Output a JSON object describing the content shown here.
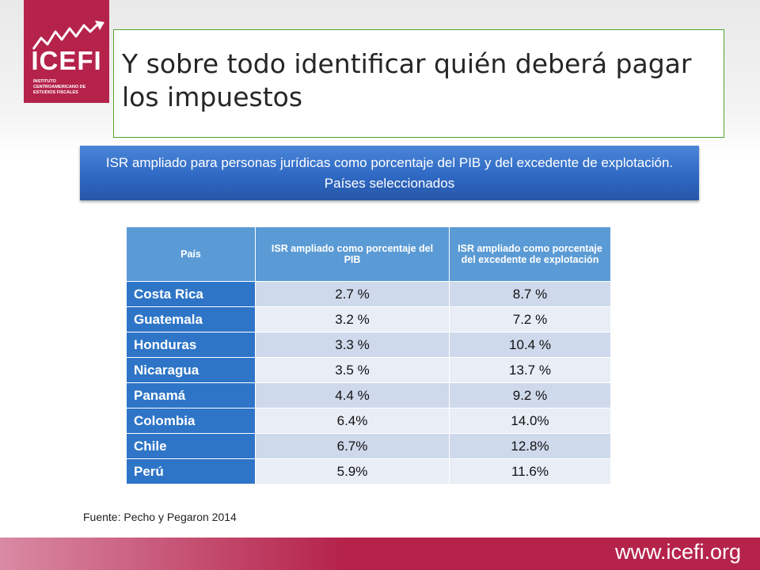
{
  "logo": {
    "name": "ICEFI",
    "subtitle": "INSTITUTO CENTROAMERICANO DE ESTUDIOS FISCALES",
    "brand_color": "#b5234b"
  },
  "slide": {
    "title": "Y sobre todo identificar quién deberá pagar los impuestos",
    "banner": "ISR ampliado para personas jurídicas como porcentaje del PIB y del excedente de explotación. Países seleccionados"
  },
  "table": {
    "headers": [
      "País",
      "ISR ampliado como porcentaje del PIB",
      "ISR ampliado como porcentaje del excedente de explotación"
    ],
    "rows": [
      {
        "country": "Costa Rica",
        "pib": "2.7 %",
        "excedente": "8.7 %"
      },
      {
        "country": "Guatemala",
        "pib": "3.2 %",
        "excedente": "7.2 %"
      },
      {
        "country": "Honduras",
        "pib": "3.3 %",
        "excedente": "10.4 %"
      },
      {
        "country": "Nicaragua",
        "pib": "3.5 %",
        "excedente": "13.7 %"
      },
      {
        "country": "Panamá",
        "pib": "4.4 %",
        "excedente": "9.2 %"
      },
      {
        "country": "Colombia",
        "pib": "6.4%",
        "excedente": "14.0%"
      },
      {
        "country": "Chile",
        "pib": "6.7%",
        "excedente": "12.8%"
      },
      {
        "country": "Perú",
        "pib": "5.9%",
        "excedente": "11.6%"
      }
    ]
  },
  "source": "Fuente: Pecho y Pegaron 2014",
  "footer": {
    "url": "www.icefi.org"
  },
  "colors": {
    "header_blue": "#5b9bd5",
    "country_blue": "#2e75c7",
    "banner_blue": "#2f69c4",
    "title_border_green": "#4ea72e"
  }
}
